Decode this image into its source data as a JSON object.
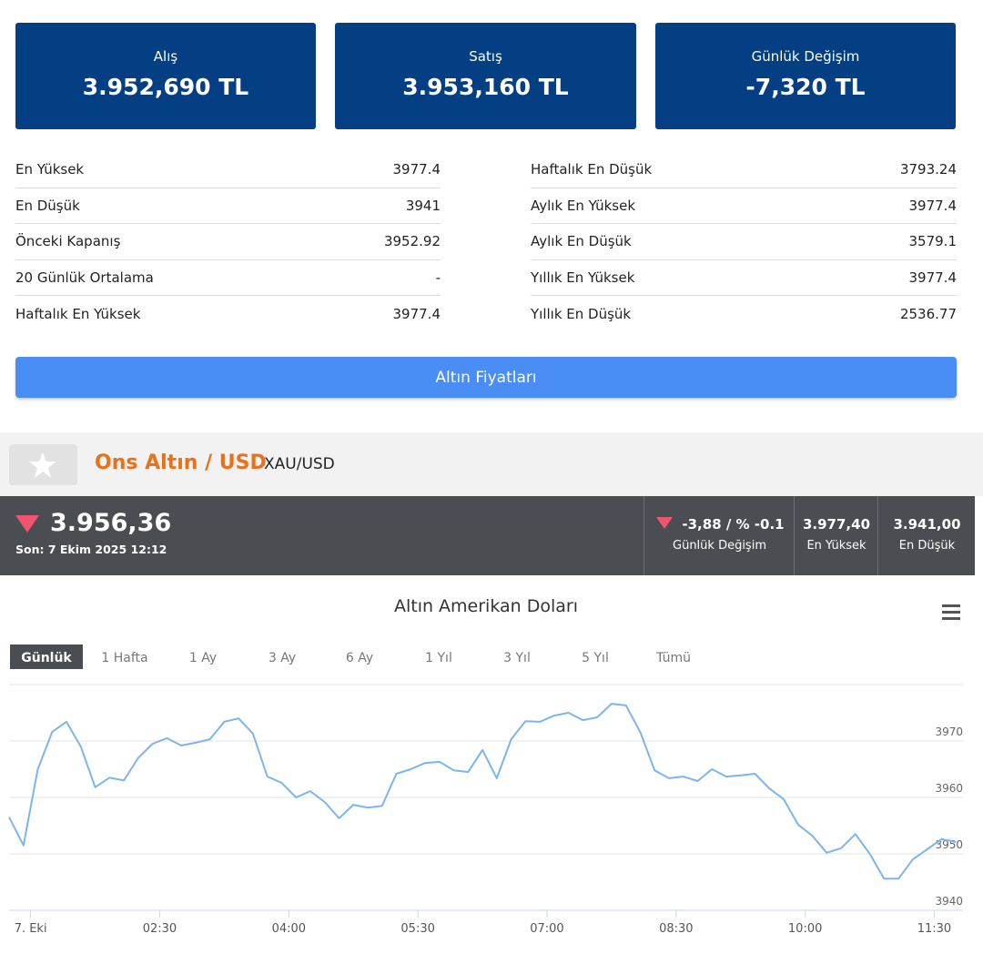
{
  "cards": [
    {
      "label": "Alış",
      "value": "3.952,690 TL"
    },
    {
      "label": "Satış",
      "value": "3.953,160 TL"
    },
    {
      "label": "Günlük Değişim",
      "value": "-7,320 TL"
    }
  ],
  "stats": {
    "left": [
      [
        "En Yüksek",
        "3977.4"
      ],
      [
        "En Düşük",
        "3941"
      ],
      [
        "Önceki Kapanış",
        "3952.92"
      ],
      [
        "20 Günlük Ortalama",
        "-"
      ],
      [
        "Haftalık En Yüksek",
        "3977.4"
      ]
    ],
    "right": [
      [
        "Haftalık En Düşük",
        "3793.24"
      ],
      [
        "Aylık En Yüksek",
        "3977.4"
      ],
      [
        "Aylık En Düşük",
        "3579.1"
      ],
      [
        "Yıllık En Yüksek",
        "3977.4"
      ],
      [
        "Yıllık En Düşük",
        "2536.77"
      ]
    ]
  },
  "button": "Altın Fiyatları",
  "instrument": {
    "name": "Ons Altın / USD",
    "symbol": "XAU/USD"
  },
  "ticker": {
    "price": "3.956,36",
    "updated": "Son: 7 Ekim 2025 12:12",
    "cells": [
      {
        "value": "-3,88 / % -0.1",
        "label": "Günlük Değişim"
      },
      {
        "value": "3.977,40",
        "label": "En Yüksek"
      },
      {
        "value": "3.941,00",
        "label": "En Düşük"
      }
    ]
  },
  "chart_data": {
    "type": "line",
    "title": "Altın Amerikan Doları",
    "ranges": [
      "Günlük",
      "1 Hafta",
      "1 Ay",
      "3 Ay",
      "6 Ay",
      "1 Yıl",
      "3 Yıl",
      "5 Yıl",
      "Tümü"
    ],
    "x": [
      "00:45",
      "00:55",
      "01:05",
      "01:15",
      "01:25",
      "01:35",
      "01:45",
      "01:55",
      "02:05",
      "02:15",
      "02:25",
      "02:35",
      "02:45",
      "02:55",
      "03:05",
      "03:15",
      "03:25",
      "03:35",
      "03:45",
      "03:55",
      "04:05",
      "04:15",
      "04:25",
      "04:35",
      "04:45",
      "04:55",
      "05:05",
      "05:15",
      "05:25",
      "05:35",
      "05:45",
      "05:55",
      "06:05",
      "06:15",
      "06:25",
      "06:35",
      "06:45",
      "06:55",
      "07:05",
      "07:15",
      "07:25",
      "07:35",
      "07:45",
      "07:55",
      "08:05",
      "08:15",
      "08:25",
      "08:35",
      "08:45",
      "08:55",
      "09:05",
      "09:15",
      "09:25",
      "09:35",
      "09:45",
      "09:55",
      "10:05",
      "10:15",
      "10:25",
      "10:35",
      "10:45",
      "10:55",
      "11:05",
      "11:15",
      "11:25",
      "11:35",
      "11:45"
    ],
    "values": [
      3956.5,
      3951.5,
      3965,
      3971.6,
      3973.4,
      3969,
      3961.8,
      3963.5,
      3963,
      3967,
      3969.5,
      3970.5,
      3969.2,
      3969.7,
      3970.3,
      3973.4,
      3974,
      3971.3,
      3963.7,
      3962.6,
      3960,
      3961.1,
      3959.2,
      3956.3,
      3958.7,
      3958.2,
      3958.5,
      3964.2,
      3965,
      3966.1,
      3966.3,
      3964.8,
      3964.5,
      3968.4,
      3963.4,
      3970.3,
      3973.5,
      3973.4,
      3974.5,
      3975,
      3973.7,
      3974.2,
      3976.6,
      3976.3,
      3971.6,
      3964.8,
      3963.4,
      3963.7,
      3962.9,
      3965,
      3963.7,
      3963.9,
      3964.2,
      3961.6,
      3959.7,
      3955.2,
      3953.2,
      3950.2,
      3951,
      3953.5,
      3950,
      3945.6,
      3945.6,
      3949,
      3950.8,
      3952.6,
      3952.1
    ],
    "color": "#7cb5ec",
    "xlim": [
      "00:45",
      "11:50"
    ],
    "xticks": [
      {
        "value": "01:00",
        "label": "7. Eki"
      },
      "02:30",
      "04:00",
      "05:30",
      "07:00",
      "08:30",
      "10:00",
      "11:30"
    ],
    "ylim": [
      3940,
      3980
    ],
    "yticks": [
      3940,
      3950,
      3960,
      3970
    ],
    "grid": true
  }
}
